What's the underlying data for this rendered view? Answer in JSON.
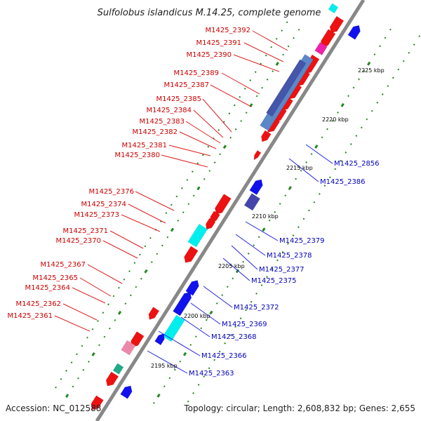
{
  "title": "Sulfolobus islandicus M.14.25, complete genome",
  "footer": {
    "accession": "Accession: NC_012588",
    "topology": "Topology: circular; Length: 2,608,832 bp; Genes: 2,655"
  },
  "scale_labels": [
    "2225 kbp",
    "2220 kbp",
    "2215 kbp",
    "2210 kbp",
    "2205 kbp",
    "2200 kbp",
    "2195 kbp"
  ],
  "left_labels": [
    "M1425_2392",
    "M1425_2391",
    "M1425_2390",
    "M1425_2389",
    "M1425_2387",
    "M1425_2385",
    "M1425_2384",
    "M1425_2383",
    "M1425_2382",
    "M1425_2381",
    "M1425_2380",
    "M1425_2376",
    "M1425_2374",
    "M1425_2373",
    "M1425_2371",
    "M1425_2370",
    "M1425_2367",
    "M1425_2365",
    "M1425_2364",
    "M1425_2362",
    "M1425_2361"
  ],
  "right_labels": [
    "M1425_2856",
    "M1425_2386",
    "M1425_2379",
    "M1425_2378",
    "M1425_2377",
    "M1425_2375",
    "M1425_2372",
    "M1425_2369",
    "M1425_2368",
    "M1425_2366",
    "M1425_2363"
  ],
  "colors": {
    "forward": "#ee1111",
    "reverse": "#1111ee",
    "cyan": "#00eeee",
    "purple": "#6a5acd",
    "pink": "#ee88aa",
    "magenta": "#ee22aa",
    "orange": "#ff9900",
    "axis": "#888888",
    "tick": "#228822"
  }
}
